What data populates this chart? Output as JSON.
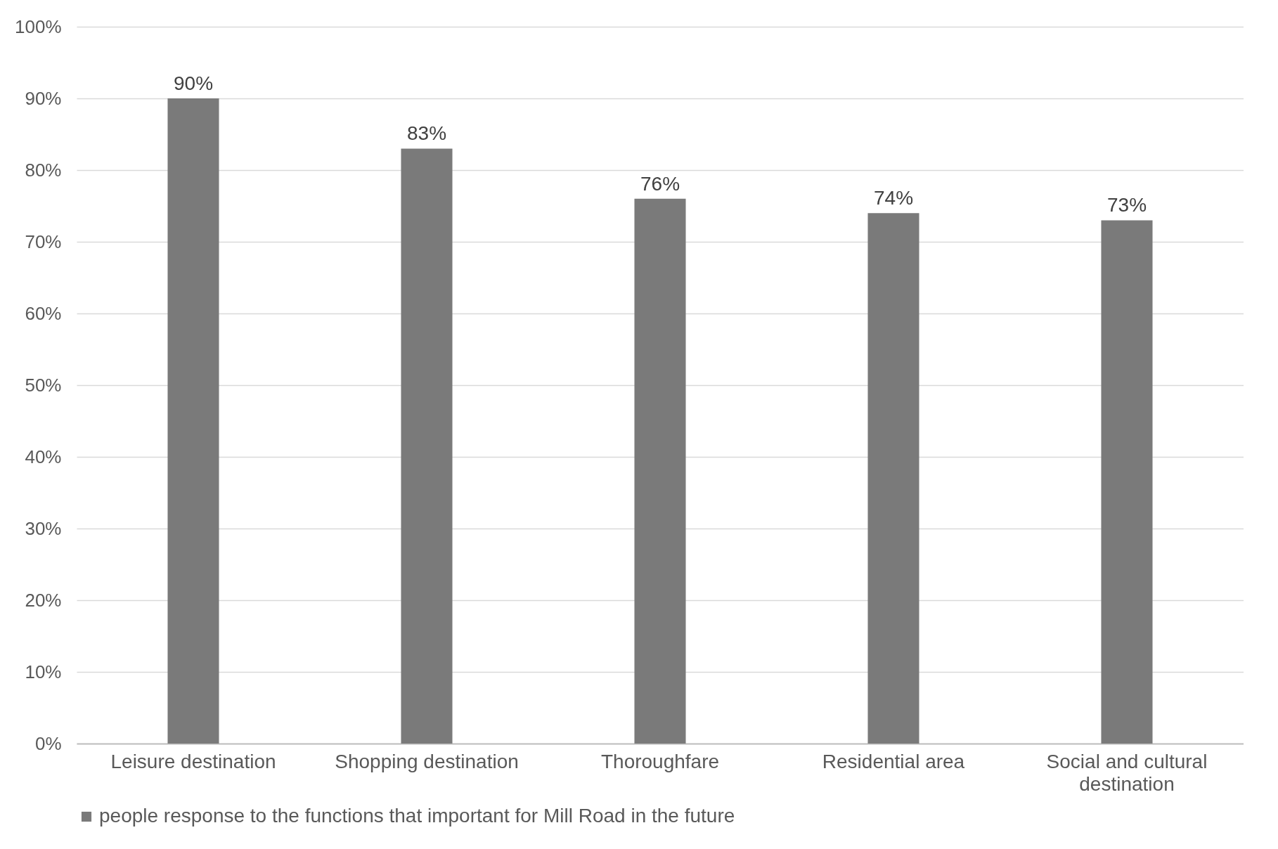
{
  "chart_data": {
    "type": "bar",
    "categories": [
      "Leisure destination",
      "Shopping destination",
      "Thoroughfare",
      "Residential area",
      "Social and cultural destination"
    ],
    "series": [
      {
        "name": "people response to the functions that important for Mill Road in the future",
        "color": "#7a7a7a",
        "values": [
          90,
          83,
          76,
          74,
          73
        ],
        "value_labels": [
          "90%",
          "83%",
          "76%",
          "74%",
          "73%"
        ]
      }
    ],
    "ylim": [
      0,
      100
    ],
    "yticks": [
      {
        "value": 0,
        "label": "0%"
      },
      {
        "value": 10,
        "label": "10%"
      },
      {
        "value": 20,
        "label": "20%"
      },
      {
        "value": 30,
        "label": "30%"
      },
      {
        "value": 40,
        "label": "40%"
      },
      {
        "value": 50,
        "label": "50%"
      },
      {
        "value": 60,
        "label": "60%"
      },
      {
        "value": 70,
        "label": "70%"
      },
      {
        "value": 80,
        "label": "80%"
      },
      {
        "value": 90,
        "label": "90%"
      },
      {
        "value": 100,
        "label": "100%"
      }
    ],
    "grid": "y",
    "legend": "bottom"
  }
}
